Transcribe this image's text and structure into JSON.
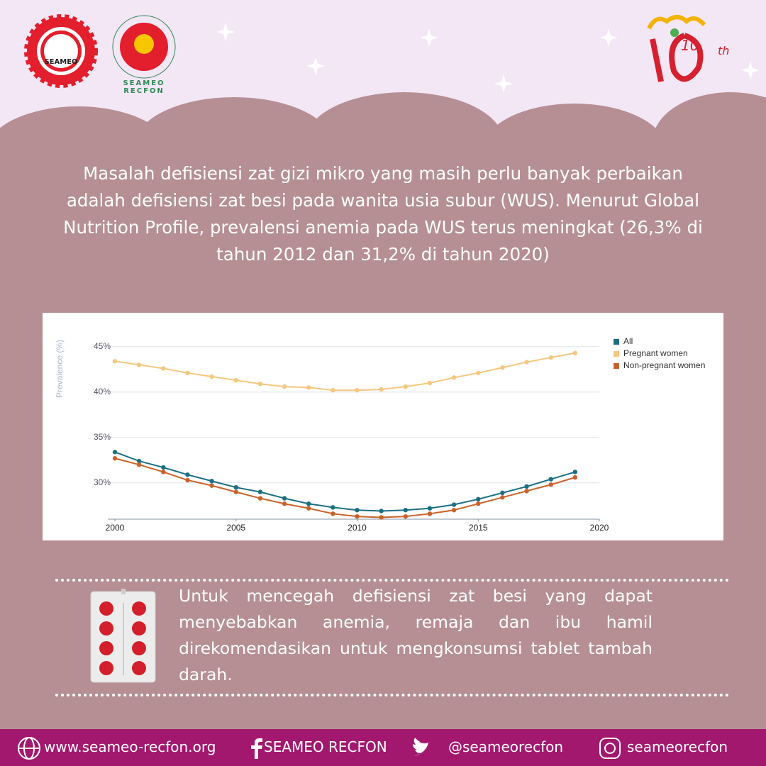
{
  "header": {
    "logos": [
      "SEAMEO",
      "SEAMEO RECFON"
    ],
    "anniversary": {
      "number": "10",
      "suffix": "th"
    }
  },
  "intro": "Masalah defisiensi zat gizi mikro yang masih perlu banyak perbaikan adalah defisiensi zat besi pada wanita usia subur (WUS). Menurut Global Nutrition Profile, prevalensi anemia pada WUS terus meningkat (26,3% di tahun 2012 dan 31,2% di tahun 2020)",
  "chart_data": {
    "type": "line",
    "y_label": "Prevalence (%)",
    "x": [
      2000,
      2001,
      2002,
      2003,
      2004,
      2005,
      2006,
      2007,
      2008,
      2009,
      2010,
      2011,
      2012,
      2013,
      2014,
      2015,
      2016,
      2017,
      2018,
      2019
    ],
    "xlim": [
      2000,
      2020
    ],
    "xticks": [
      2000,
      2005,
      2010,
      2015,
      2020
    ],
    "ylim": [
      26,
      46
    ],
    "yticks": [
      {
        "value": 30,
        "label": "30%"
      },
      {
        "value": 35,
        "label": "35%"
      },
      {
        "value": 40,
        "label": "40%"
      },
      {
        "value": 45,
        "label": "45%"
      }
    ],
    "grid": true,
    "legend": "top-right",
    "series": [
      {
        "name": "All",
        "color": "#1a6f82",
        "values": [
          33.4,
          32.4,
          31.7,
          30.9,
          30.2,
          29.5,
          29.0,
          28.3,
          27.7,
          27.3,
          27.0,
          26.9,
          27.0,
          27.2,
          27.6,
          28.2,
          28.9,
          29.6,
          30.4,
          31.2
        ]
      },
      {
        "name": "Pregnant women",
        "color": "#f6c77e",
        "values": [
          43.4,
          43.0,
          42.6,
          42.1,
          41.7,
          41.3,
          40.9,
          40.6,
          40.5,
          40.2,
          40.2,
          40.3,
          40.6,
          41.0,
          41.6,
          42.1,
          42.7,
          43.3,
          43.8,
          44.3
        ]
      },
      {
        "name": "Non-pregnant women",
        "color": "#c9622a",
        "values": [
          32.7,
          32.0,
          31.2,
          30.3,
          29.7,
          29.0,
          28.3,
          27.7,
          27.2,
          26.6,
          26.3,
          26.2,
          26.3,
          26.6,
          27.0,
          27.7,
          28.4,
          29.1,
          29.8,
          30.6
        ]
      }
    ]
  },
  "note": "Untuk mencegah defisiensi zat besi yang dapat menyebabkan anemia, remaja dan ibu hamil direkomendasikan untuk mengkonsumsi tablet tambah darah.",
  "footer": {
    "website": "www.seameo-recfon.org",
    "facebook": "SEAMEO RECFON",
    "twitter": "@seameorecfon",
    "instagram": "seameorecfon"
  }
}
